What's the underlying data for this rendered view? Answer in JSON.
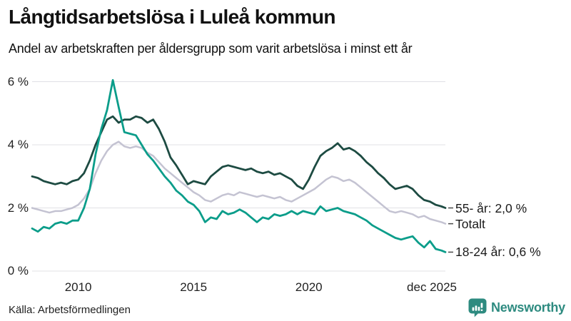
{
  "header": {
    "title": "Långtidsarbetslösa i Luleå kommun",
    "subtitle": "Andel av arbetskraften per åldersgrupp som varit arbetslösa i minst ett år"
  },
  "footer": {
    "source": "Källa: Arbetsförmedlingen",
    "brand": "Newsworthy"
  },
  "colors": {
    "series_55": "#1d4b42",
    "series_total": "#c4c3d2",
    "series_18_24": "#0b9d8a",
    "grid": "#e0e0e5",
    "leader": "#4a4a4a",
    "brand_teal": "#2e8b80"
  },
  "chart_data": {
    "type": "line",
    "title": "Långtidsarbetslösa i Luleå kommun",
    "subtitle": "Andel av arbetskraften per åldersgrupp som varit arbetslösa i minst ett år",
    "unit": "%",
    "xlim": [
      2008,
      2025.92
    ],
    "ylim": [
      0,
      6
    ],
    "grid": "horizontal",
    "legend_position": "right-end-labels",
    "yticks": [
      {
        "v": 0,
        "label": "0 %"
      },
      {
        "v": 2,
        "label": "2 %"
      },
      {
        "v": 4,
        "label": "4 %"
      },
      {
        "v": 6,
        "label": "6 %"
      }
    ],
    "xticks": [
      {
        "x": 2010,
        "label": "2010",
        "align": "center"
      },
      {
        "x": 2015,
        "label": "2015",
        "align": "center"
      },
      {
        "x": 2020,
        "label": "2020",
        "align": "center"
      },
      {
        "x": 2025.92,
        "label": "dec 2025",
        "align": "right"
      }
    ],
    "x": [
      2008,
      2008.25,
      2008.5,
      2008.75,
      2009,
      2009.25,
      2009.5,
      2009.75,
      2010,
      2010.25,
      2010.5,
      2010.75,
      2011,
      2011.25,
      2011.5,
      2011.75,
      2012,
      2012.25,
      2012.5,
      2012.75,
      2013,
      2013.25,
      2013.5,
      2013.75,
      2014,
      2014.25,
      2014.5,
      2014.75,
      2015,
      2015.25,
      2015.5,
      2015.75,
      2016,
      2016.25,
      2016.5,
      2016.75,
      2017,
      2017.25,
      2017.5,
      2017.75,
      2018,
      2018.25,
      2018.5,
      2018.75,
      2019,
      2019.25,
      2019.5,
      2019.75,
      2020,
      2020.25,
      2020.5,
      2020.75,
      2021,
      2021.25,
      2021.5,
      2021.75,
      2022,
      2022.25,
      2022.5,
      2022.75,
      2023,
      2023.25,
      2023.5,
      2023.75,
      2024,
      2024.25,
      2024.5,
      2024.75,
      2025,
      2025.25,
      2025.5,
      2025.75,
      2025.92
    ],
    "series": [
      {
        "name": "Totalt",
        "end_label": "Totalt",
        "end_value": 1.5,
        "color": "#c4c3d2",
        "width": 2.5,
        "values": [
          2.0,
          1.95,
          1.9,
          1.85,
          1.9,
          1.9,
          1.95,
          2.0,
          2.1,
          2.3,
          2.6,
          3.1,
          3.5,
          3.8,
          4.0,
          4.1,
          3.95,
          3.9,
          3.95,
          3.9,
          3.75,
          3.65,
          3.45,
          3.25,
          3.1,
          2.95,
          2.8,
          2.65,
          2.5,
          2.4,
          2.25,
          2.2,
          2.3,
          2.4,
          2.45,
          2.4,
          2.5,
          2.45,
          2.4,
          2.35,
          2.4,
          2.35,
          2.3,
          2.35,
          2.25,
          2.2,
          2.3,
          2.4,
          2.5,
          2.6,
          2.75,
          2.9,
          3.0,
          2.95,
          2.85,
          2.9,
          2.8,
          2.65,
          2.5,
          2.35,
          2.2,
          2.05,
          1.9,
          1.85,
          1.9,
          1.85,
          1.8,
          1.7,
          1.75,
          1.65,
          1.6,
          1.55,
          1.5
        ]
      },
      {
        "name": "55- år",
        "end_label": "55- år: 2,0 %",
        "end_value": 2.0,
        "color": "#1d4b42",
        "width": 2.8,
        "values": [
          3.0,
          2.95,
          2.85,
          2.8,
          2.75,
          2.8,
          2.75,
          2.85,
          2.9,
          3.1,
          3.5,
          4.0,
          4.4,
          4.8,
          4.9,
          4.7,
          4.8,
          4.8,
          4.9,
          4.85,
          4.7,
          4.8,
          4.5,
          4.1,
          3.6,
          3.35,
          3.05,
          2.75,
          2.85,
          2.8,
          2.75,
          3.0,
          3.15,
          3.3,
          3.35,
          3.3,
          3.25,
          3.2,
          3.25,
          3.15,
          3.1,
          3.15,
          3.05,
          3.1,
          3.0,
          2.9,
          2.7,
          2.6,
          2.9,
          3.3,
          3.65,
          3.8,
          3.9,
          4.05,
          3.85,
          3.9,
          3.8,
          3.65,
          3.45,
          3.3,
          3.1,
          2.95,
          2.75,
          2.6,
          2.65,
          2.7,
          2.6,
          2.4,
          2.25,
          2.2,
          2.1,
          2.05,
          2.0
        ]
      },
      {
        "name": "18-24 år",
        "end_label": "18-24 år: 0,6 %",
        "end_value": 0.6,
        "color": "#0b9d8a",
        "width": 2.8,
        "values": [
          1.35,
          1.25,
          1.4,
          1.35,
          1.5,
          1.55,
          1.5,
          1.6,
          1.6,
          2.0,
          2.6,
          3.7,
          4.5,
          5.1,
          6.05,
          5.2,
          4.4,
          4.35,
          4.3,
          4.0,
          3.7,
          3.5,
          3.25,
          3.0,
          2.8,
          2.55,
          2.4,
          2.2,
          2.1,
          1.9,
          1.55,
          1.7,
          1.65,
          1.9,
          1.8,
          1.85,
          1.95,
          1.85,
          1.7,
          1.55,
          1.7,
          1.65,
          1.8,
          1.75,
          1.8,
          1.9,
          1.8,
          1.9,
          1.85,
          1.8,
          2.05,
          1.9,
          1.95,
          2.0,
          1.9,
          1.85,
          1.8,
          1.7,
          1.6,
          1.45,
          1.35,
          1.25,
          1.15,
          1.05,
          1.0,
          1.05,
          1.1,
          0.9,
          0.75,
          0.95,
          0.7,
          0.65,
          0.6
        ]
      }
    ]
  }
}
